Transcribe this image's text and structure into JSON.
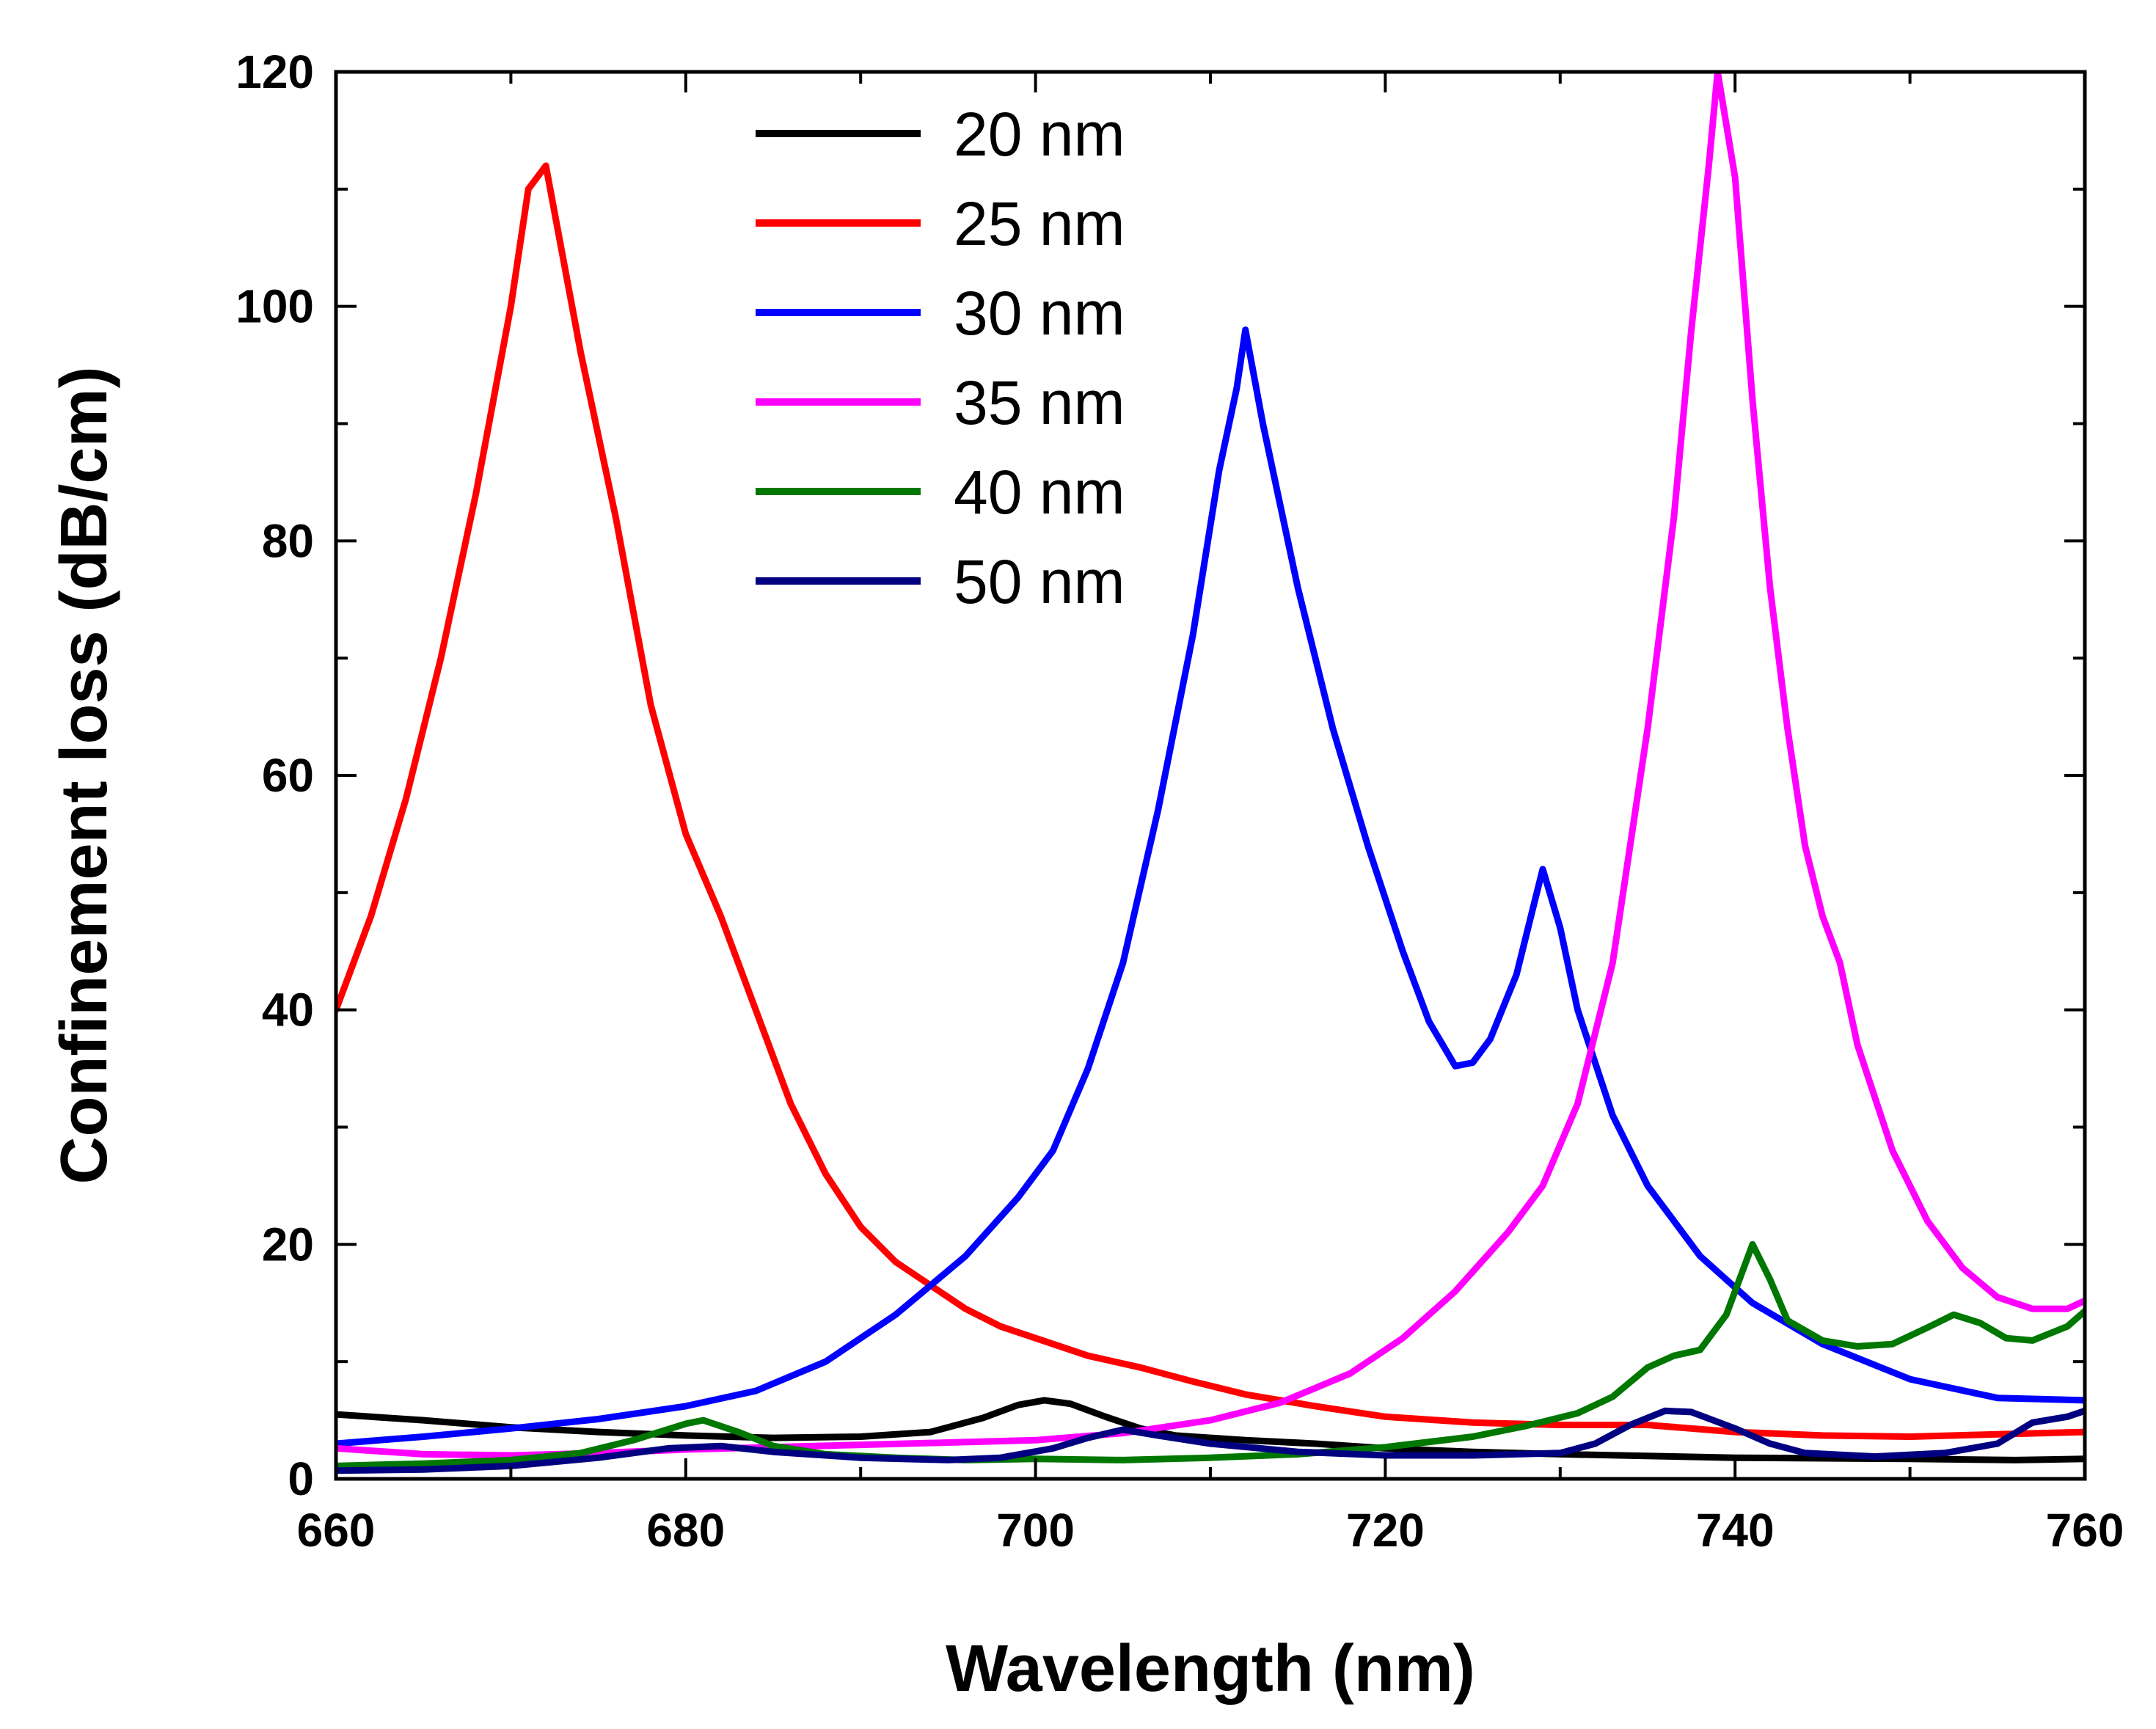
{
  "chart_data": {
    "type": "line",
    "xlabel": "Wavelength (nm)",
    "ylabel": "Confinement loss (dB/cm)",
    "xlim": [
      660,
      760
    ],
    "ylim": [
      0,
      120
    ],
    "x_ticks": [
      660,
      680,
      700,
      720,
      740,
      760
    ],
    "y_ticks": [
      0,
      20,
      40,
      60,
      80,
      100,
      120
    ],
    "grid": false,
    "legend_position": "top-center",
    "series": [
      {
        "name": "20 nm",
        "color": "#000000",
        "points": [
          [
            660,
            5.5
          ],
          [
            665,
            5
          ],
          [
            670,
            4.4
          ],
          [
            675,
            4
          ],
          [
            680,
            3.7
          ],
          [
            685,
            3.5
          ],
          [
            690,
            3.6
          ],
          [
            694,
            4
          ],
          [
            697,
            5.2
          ],
          [
            699,
            6.3
          ],
          [
            700.5,
            6.7
          ],
          [
            702,
            6.4
          ],
          [
            704,
            5.3
          ],
          [
            706,
            4.3
          ],
          [
            708,
            3.7
          ],
          [
            712,
            3.3
          ],
          [
            716,
            3
          ],
          [
            720,
            2.6
          ],
          [
            725,
            2.3
          ],
          [
            730,
            2.1
          ],
          [
            740,
            1.8
          ],
          [
            750,
            1.7
          ],
          [
            756,
            1.6
          ],
          [
            760,
            1.7
          ]
        ]
      },
      {
        "name": "25 nm",
        "color": "#ff0000",
        "points": [
          [
            660,
            40
          ],
          [
            662,
            48
          ],
          [
            664,
            58
          ],
          [
            666,
            70
          ],
          [
            668,
            84
          ],
          [
            670,
            100
          ],
          [
            671,
            110
          ],
          [
            672,
            112
          ],
          [
            673,
            104
          ],
          [
            674,
            96
          ],
          [
            676,
            82
          ],
          [
            678,
            66
          ],
          [
            680,
            55
          ],
          [
            682,
            48
          ],
          [
            684,
            40
          ],
          [
            686,
            32
          ],
          [
            688,
            26
          ],
          [
            690,
            21.5
          ],
          [
            692,
            18.5
          ],
          [
            694,
            16.5
          ],
          [
            696,
            14.5
          ],
          [
            698,
            13
          ],
          [
            700,
            12
          ],
          [
            703,
            10.5
          ],
          [
            706,
            9.5
          ],
          [
            709,
            8.3
          ],
          [
            712,
            7.2
          ],
          [
            716,
            6.2
          ],
          [
            720,
            5.3
          ],
          [
            725,
            4.8
          ],
          [
            730,
            4.6
          ],
          [
            735,
            4.6
          ],
          [
            740,
            4
          ],
          [
            745,
            3.7
          ],
          [
            750,
            3.6
          ],
          [
            755,
            3.8
          ],
          [
            760,
            4
          ]
        ]
      },
      {
        "name": "30 nm",
        "color": "#0000ff",
        "points": [
          [
            660,
            3
          ],
          [
            665,
            3.6
          ],
          [
            670,
            4.3
          ],
          [
            675,
            5.1
          ],
          [
            680,
            6.2
          ],
          [
            684,
            7.5
          ],
          [
            688,
            10
          ],
          [
            692,
            14
          ],
          [
            696,
            19
          ],
          [
            699,
            24
          ],
          [
            701,
            28
          ],
          [
            703,
            35
          ],
          [
            705,
            44
          ],
          [
            707,
            57
          ],
          [
            709,
            72
          ],
          [
            710.5,
            86
          ],
          [
            711.5,
            93
          ],
          [
            712,
            98
          ],
          [
            713,
            90
          ],
          [
            715,
            76
          ],
          [
            717,
            64
          ],
          [
            719,
            54
          ],
          [
            721,
            45
          ],
          [
            722.5,
            39
          ],
          [
            724,
            35.2
          ],
          [
            725,
            35.5
          ],
          [
            726,
            37.5
          ],
          [
            727.5,
            43
          ],
          [
            728.5,
            49
          ],
          [
            729,
            52
          ],
          [
            730,
            47
          ],
          [
            731,
            40
          ],
          [
            733,
            31
          ],
          [
            735,
            25
          ],
          [
            738,
            19
          ],
          [
            741,
            15
          ],
          [
            745,
            11.5
          ],
          [
            750,
            8.5
          ],
          [
            755,
            6.9
          ],
          [
            760,
            6.7
          ]
        ]
      },
      {
        "name": "35 nm",
        "color": "#ff00ff",
        "points": [
          [
            660,
            2.6
          ],
          [
            665,
            2.1
          ],
          [
            670,
            2
          ],
          [
            675,
            2.2
          ],
          [
            680,
            2.5
          ],
          [
            685,
            2.7
          ],
          [
            690,
            2.9
          ],
          [
            695,
            3.1
          ],
          [
            700,
            3.3
          ],
          [
            705,
            3.9
          ],
          [
            710,
            5
          ],
          [
            714,
            6.5
          ],
          [
            718,
            9
          ],
          [
            721,
            12
          ],
          [
            724,
            16
          ],
          [
            727,
            21
          ],
          [
            729,
            25
          ],
          [
            731,
            32
          ],
          [
            733,
            44
          ],
          [
            735,
            64
          ],
          [
            736.5,
            82
          ],
          [
            737.5,
            98
          ],
          [
            738.5,
            112
          ],
          [
            739,
            120
          ],
          [
            740,
            111
          ],
          [
            741,
            92
          ],
          [
            742,
            76
          ],
          [
            743,
            64
          ],
          [
            744,
            54
          ],
          [
            745,
            48
          ],
          [
            746,
            44
          ],
          [
            747,
            37
          ],
          [
            749,
            28
          ],
          [
            751,
            22
          ],
          [
            753,
            18
          ],
          [
            755,
            15.5
          ],
          [
            757,
            14.5
          ],
          [
            759,
            14.5
          ],
          [
            760,
            15.2
          ]
        ]
      },
      {
        "name": "40 nm",
        "color": "#007700",
        "points": [
          [
            660,
            1.1
          ],
          [
            665,
            1.3
          ],
          [
            670,
            1.6
          ],
          [
            674,
            2.2
          ],
          [
            677,
            3.3
          ],
          [
            680,
            4.7
          ],
          [
            681,
            5
          ],
          [
            683,
            4
          ],
          [
            685,
            2.8
          ],
          [
            688,
            2.1
          ],
          [
            692,
            1.8
          ],
          [
            696,
            1.6
          ],
          [
            700,
            1.7
          ],
          [
            705,
            1.6
          ],
          [
            710,
            1.8
          ],
          [
            715,
            2.1
          ],
          [
            720,
            2.7
          ],
          [
            725,
            3.6
          ],
          [
            728,
            4.5
          ],
          [
            731,
            5.6
          ],
          [
            733,
            7
          ],
          [
            735,
            9.5
          ],
          [
            736.5,
            10.5
          ],
          [
            738,
            11
          ],
          [
            739.5,
            14
          ],
          [
            740.5,
            18
          ],
          [
            741,
            20
          ],
          [
            742,
            17
          ],
          [
            743,
            13.5
          ],
          [
            745,
            11.8
          ],
          [
            747,
            11.3
          ],
          [
            749,
            11.5
          ],
          [
            751,
            12.9
          ],
          [
            752.5,
            14
          ],
          [
            754,
            13.3
          ],
          [
            755.5,
            12
          ],
          [
            757,
            11.8
          ],
          [
            759,
            13
          ],
          [
            760,
            14.3
          ]
        ]
      },
      {
        "name": "50 nm",
        "color": "#000080",
        "points": [
          [
            660,
            0.7
          ],
          [
            665,
            0.8
          ],
          [
            670,
            1.1
          ],
          [
            675,
            1.8
          ],
          [
            679,
            2.6
          ],
          [
            682,
            2.8
          ],
          [
            685,
            2.3
          ],
          [
            690,
            1.8
          ],
          [
            695,
            1.6
          ],
          [
            698,
            1.8
          ],
          [
            701,
            2.6
          ],
          [
            703,
            3.5
          ],
          [
            705,
            4.2
          ],
          [
            707,
            3.7
          ],
          [
            710,
            3
          ],
          [
            715,
            2.3
          ],
          [
            720,
            2
          ],
          [
            725,
            2
          ],
          [
            730,
            2.2
          ],
          [
            732,
            3
          ],
          [
            734,
            4.6
          ],
          [
            736,
            5.8
          ],
          [
            737.5,
            5.7
          ],
          [
            740,
            4.3
          ],
          [
            742,
            3
          ],
          [
            744,
            2.2
          ],
          [
            748,
            1.9
          ],
          [
            752,
            2.2
          ],
          [
            755,
            3
          ],
          [
            757,
            4.8
          ],
          [
            759,
            5.3
          ],
          [
            760,
            5.8
          ]
        ]
      }
    ]
  }
}
